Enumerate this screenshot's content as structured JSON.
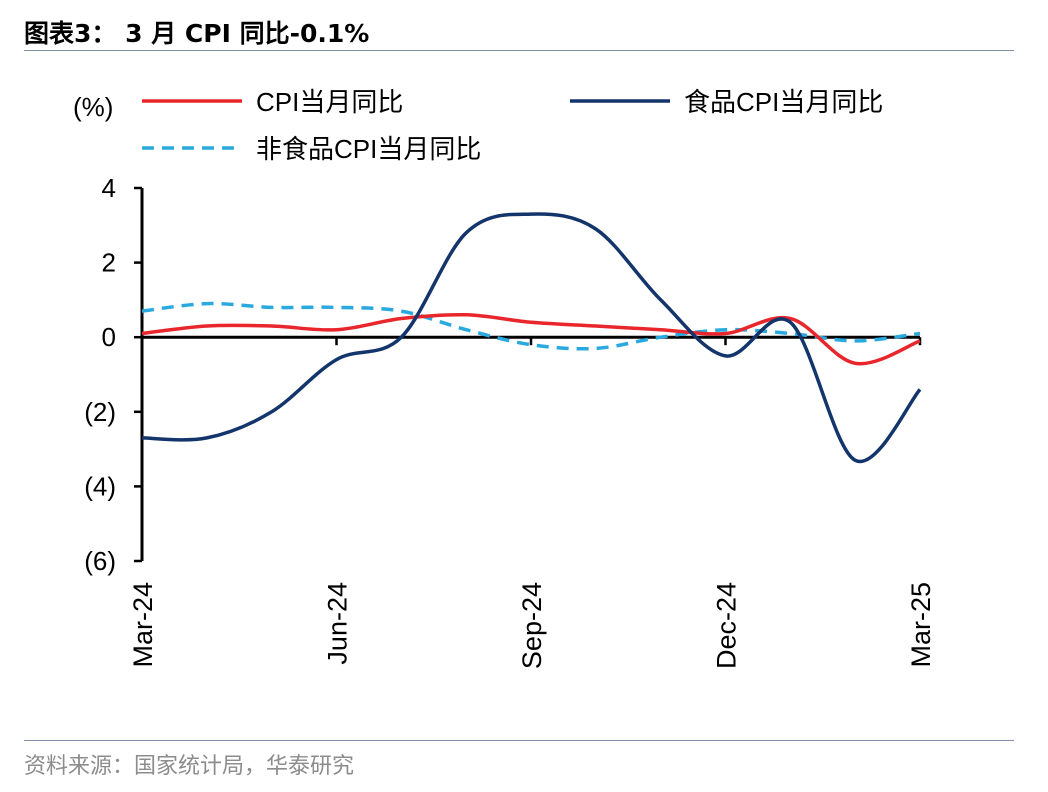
{
  "header": {
    "title": "图表3： 3 月 CPI 同比-0.1%"
  },
  "footer": {
    "source": "资料来源：国家统计局，华泰研究"
  },
  "chart_data": {
    "type": "line",
    "title": "",
    "ylabel": "(%)",
    "xlabel": "",
    "ylim": [
      -6,
      4
    ],
    "y_ticks": [
      4,
      2,
      0,
      -2,
      -4,
      -6
    ],
    "y_tick_labels": [
      "4",
      "2",
      "0",
      "(2)",
      "(4)",
      "(6)"
    ],
    "x": [
      "Mar-24",
      "Apr-24",
      "May-24",
      "Jun-24",
      "Jul-24",
      "Aug-24",
      "Sep-24",
      "Oct-24",
      "Nov-24",
      "Dec-24",
      "Jan-25",
      "Feb-25",
      "Mar-25"
    ],
    "x_tick_labels": [
      "Mar-24",
      "Jun-24",
      "Sep-24",
      "Dec-24",
      "Mar-25"
    ],
    "grid": false,
    "legend_position": "top",
    "series": [
      {
        "name": "CPI当月同比",
        "color": "#e8262b",
        "style": "solid",
        "values": [
          0.1,
          0.3,
          0.3,
          0.2,
          0.5,
          0.6,
          0.4,
          0.3,
          0.2,
          0.1,
          0.5,
          -0.7,
          -0.1
        ]
      },
      {
        "name": "食品CPI当月同比",
        "color": "#13356b",
        "style": "solid",
        "values": [
          -2.7,
          -2.7,
          -2.0,
          -0.6,
          0.0,
          2.8,
          3.3,
          2.9,
          1.0,
          -0.5,
          0.4,
          -3.3,
          -1.4
        ]
      },
      {
        "name": "非食品CPI当月同比",
        "color": "#2aa9df",
        "style": "dashed",
        "values": [
          0.7,
          0.9,
          0.8,
          0.8,
          0.7,
          0.2,
          -0.2,
          -0.3,
          0.0,
          0.2,
          0.1,
          -0.1,
          0.1
        ]
      }
    ]
  }
}
